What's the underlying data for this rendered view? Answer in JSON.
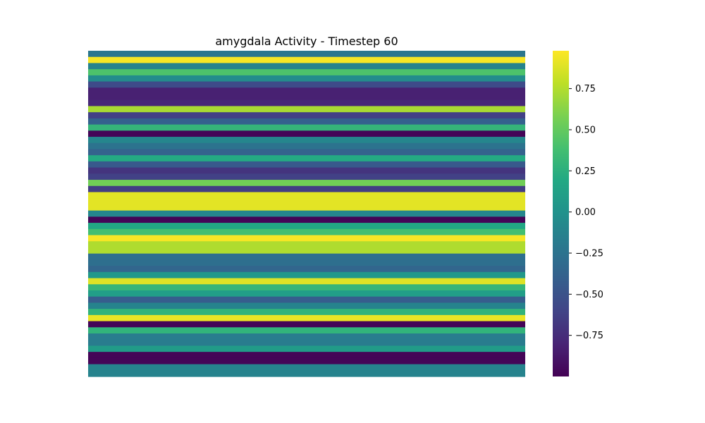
{
  "chart_data": {
    "type": "heatmap",
    "title": "amygdala Activity - Timestep 60",
    "xlabel": "",
    "ylabel": "",
    "colormap": "viridis",
    "vmin": -1.0,
    "vmax": 0.98,
    "rows": [
      -0.22,
      0.96,
      -0.12,
      0.42,
      -0.05,
      -0.55,
      -0.82,
      -0.82,
      -0.78,
      0.72,
      -0.62,
      -0.38,
      0.3,
      -0.98,
      -0.1,
      -0.25,
      -0.38,
      0.2,
      -0.45,
      -0.7,
      -0.62,
      0.55,
      -0.65,
      0.9,
      0.9,
      0.9,
      -0.1,
      -0.98,
      0.18,
      0.38,
      0.96,
      0.74,
      0.74,
      -0.28,
      -0.28,
      -0.35,
      0.05,
      0.88,
      0.3,
      0.1,
      -0.42,
      -0.12,
      0.28,
      0.92,
      -0.98,
      0.28,
      -0.18,
      -0.18,
      0.08,
      -0.98,
      -0.98,
      -0.12,
      -0.12
    ],
    "colorbar": {
      "ticks": [
        0.75,
        0.5,
        0.25,
        0.0,
        -0.25,
        -0.5,
        -0.75
      ],
      "tick_labels": [
        "0.75",
        "0.50",
        "0.25",
        "0.00",
        "−0.25",
        "−0.50",
        "−0.75"
      ]
    },
    "grid": false,
    "axes_visible": false
  }
}
